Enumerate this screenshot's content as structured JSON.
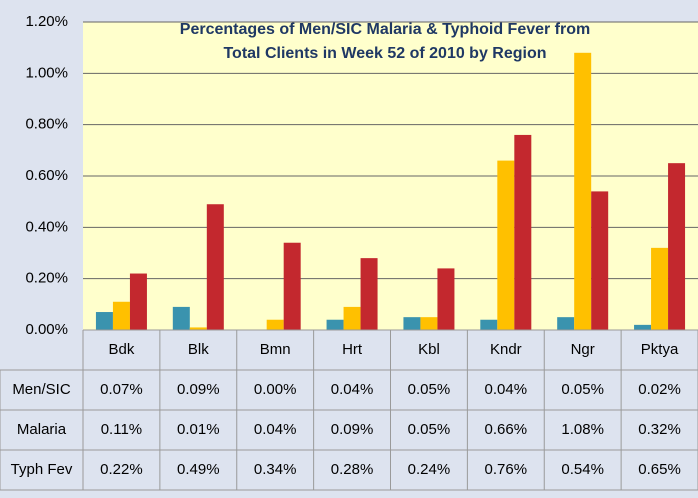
{
  "chart_data": {
    "type": "bar",
    "title": [
      "Percentages of Men/SIC  Malaria & Typhoid Fever from",
      "Total Clients in Week 52 of 2010 by Region"
    ],
    "categories": [
      "Bdk",
      "Blk",
      "Bmn",
      "Hrt",
      "Kbl",
      "Kndr",
      "Ngr",
      "Pktya"
    ],
    "series": [
      {
        "name": "Men/SIC",
        "color": "#3a93ae",
        "values": [
          0.07,
          0.09,
          0.0,
          0.04,
          0.05,
          0.04,
          0.05,
          0.02
        ],
        "value_labels": [
          "0.07%",
          "0.09%",
          "0.00%",
          "0.04%",
          "0.05%",
          "0.04%",
          "0.05%",
          "0.02%"
        ]
      },
      {
        "name": "Malaria",
        "color": "#ffc000",
        "values": [
          0.11,
          0.01,
          0.04,
          0.09,
          0.05,
          0.66,
          1.08,
          0.32
        ],
        "value_labels": [
          "0.11%",
          "0.01%",
          "0.04%",
          "0.09%",
          "0.05%",
          "0.66%",
          "1.08%",
          "0.32%"
        ]
      },
      {
        "name": "Typh Fev",
        "color": "#c3282e",
        "values": [
          0.22,
          0.49,
          0.34,
          0.28,
          0.24,
          0.76,
          0.54,
          0.65
        ],
        "value_labels": [
          "0.22%",
          "0.49%",
          "0.34%",
          "0.28%",
          "0.24%",
          "0.76%",
          "0.54%",
          "0.65%"
        ]
      }
    ],
    "ylim": [
      0,
      1.2
    ],
    "yticks": [
      {
        "value": 0,
        "label": "0.00%"
      },
      {
        "value": 0.2,
        "label": "0.20%"
      },
      {
        "value": 0.4,
        "label": "0.40%"
      },
      {
        "value": 0.6,
        "label": "0.60%"
      },
      {
        "value": 0.8,
        "label": "0.80%"
      },
      {
        "value": 1.0,
        "label": "1.00%"
      },
      {
        "value": 1.2,
        "label": "1.20%"
      }
    ],
    "grid": true
  }
}
